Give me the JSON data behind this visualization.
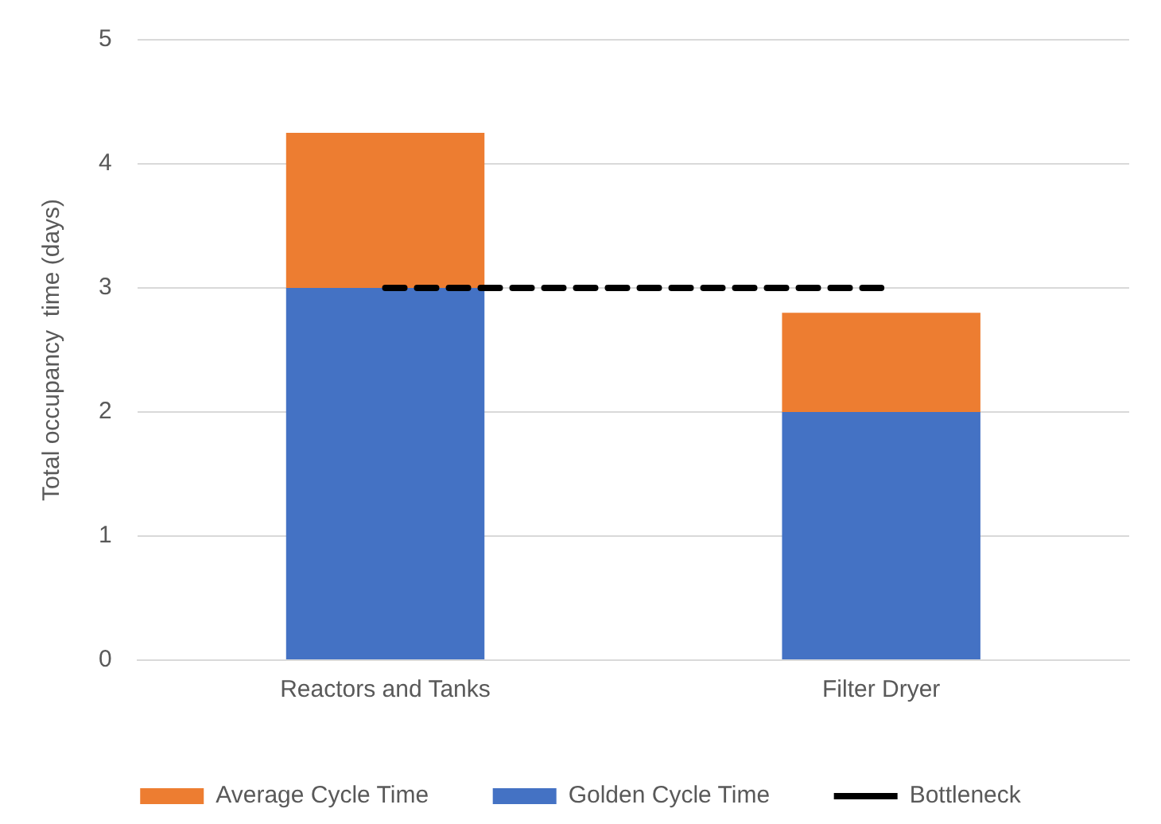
{
  "chart_data": {
    "type": "bar",
    "ylabel": "Total occupancy  time (days)",
    "categories": [
      "Reactors and Tanks",
      "Filter Dryer"
    ],
    "stacked": true,
    "ylim": [
      0,
      5
    ],
    "yticks": [
      0,
      1,
      2,
      3,
      4,
      5
    ],
    "grid": "y",
    "legend": "bottom",
    "series": [
      {
        "name": "Golden Cycle Time",
        "color": "#4472c4",
        "values": [
          3,
          2
        ]
      },
      {
        "name": "Average Cycle Time",
        "color": "#ed7d31",
        "values": [
          1.25,
          0.8
        ]
      },
      {
        "name": "Bottleneck",
        "type": "line",
        "color": "#000000",
        "values": [
          3,
          3
        ],
        "line_style": "dashed",
        "marker": "none"
      }
    ]
  }
}
